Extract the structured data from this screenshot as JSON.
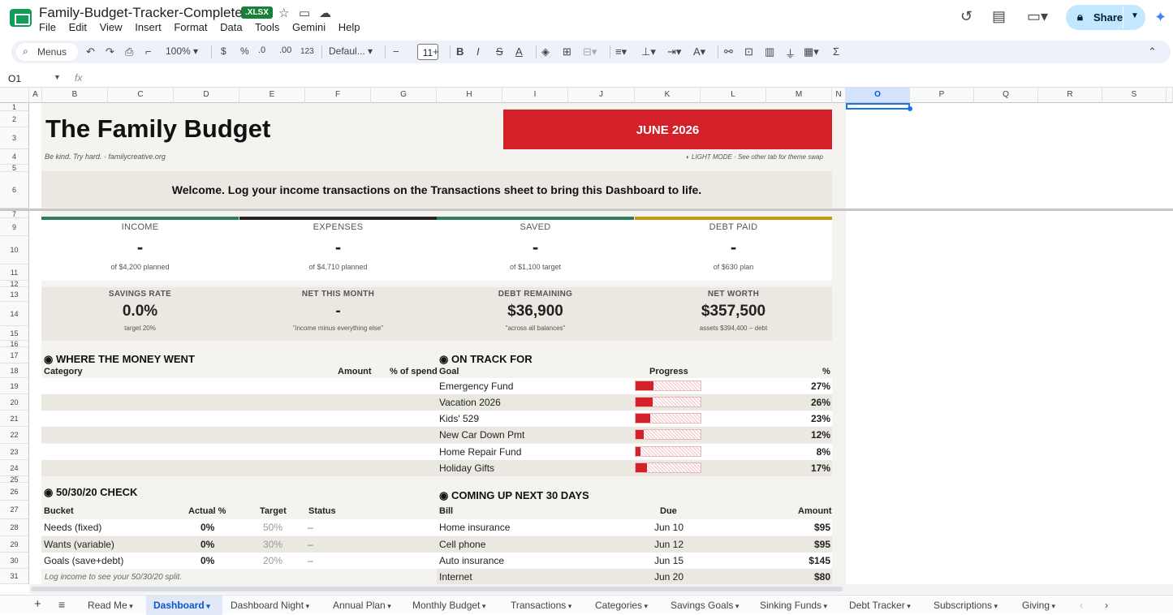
{
  "doc": {
    "title": "Family-Budget-Tracker-Complete-tier",
    "badge": ".XLSX"
  },
  "menus": [
    "File",
    "Edit",
    "View",
    "Insert",
    "Format",
    "Data",
    "Tools",
    "Gemini",
    "Help"
  ],
  "share_label": "Share",
  "toolbar": {
    "search": "Menus",
    "zoom": "100%",
    "currency": "$",
    "percent": "%",
    "dec_less": ".0",
    "dec_more": ".00",
    "num_format": "123",
    "font": "Defaul...",
    "font_size": "11"
  },
  "namebox": "O1",
  "fx": "fx",
  "columns": [
    "A",
    "B",
    "C",
    "D",
    "E",
    "F",
    "G",
    "H",
    "I",
    "J",
    "K",
    "L",
    "M",
    "N",
    "O",
    "P",
    "Q",
    "R",
    "S"
  ],
  "rows": [
    "1",
    "2",
    "3",
    "4",
    "5",
    "6",
    "7",
    "9",
    "10",
    "11",
    "12",
    "13",
    "14",
    "15",
    "16",
    "17",
    "18",
    "19",
    "20",
    "21",
    "22",
    "23",
    "24",
    "25",
    "26",
    "27",
    "28",
    "29",
    "30",
    "31"
  ],
  "header": {
    "title": "The Family Budget",
    "tagline": "Be kind. Try hard.  ·  familycreative.org",
    "month": "JUNE 2026",
    "mode": "◐ LIGHT MODE · See other tab for theme swap"
  },
  "welcome": "Welcome. Log your income transactions on the Transactions sheet to bring this Dashboard to life.",
  "kpis_top": [
    {
      "label": "INCOME",
      "value": "-",
      "sub": "of $4,200 planned",
      "color": "#2e7d5b"
    },
    {
      "label": "EXPENSES",
      "value": "-",
      "sub": "of $4,710 planned",
      "color": "#222222"
    },
    {
      "label": "SAVED",
      "value": "-",
      "sub": "of $1,100 target",
      "color": "#2e7d5b"
    },
    {
      "label": "DEBT PAID",
      "value": "-",
      "sub": "of $630 plan",
      "color": "#c8960c"
    }
  ],
  "kpis_bottom": [
    {
      "label": "SAVINGS RATE",
      "value": "0.0%",
      "sub": "target 20%"
    },
    {
      "label": "NET THIS MONTH",
      "value": "-",
      "sub": "\"income minus everything else\""
    },
    {
      "label": "DEBT REMAINING",
      "value": "$36,900",
      "sub": "\"across all balances\""
    },
    {
      "label": "NET WORTH",
      "value": "$357,500",
      "sub": "assets $394,400 − debt"
    }
  ],
  "money": {
    "title": "◉ WHERE THE MONEY WENT",
    "h_category": "Category",
    "h_amount": "Amount",
    "h_pct": "% of spend"
  },
  "goals": {
    "title": "◉ ON TRACK FOR",
    "h_goal": "Goal",
    "h_progress": "Progress",
    "h_pct": "%",
    "items": [
      {
        "name": "Emergency Fund",
        "pct": "27%",
        "progress": 0.27
      },
      {
        "name": "Vacation 2026",
        "pct": "26%",
        "progress": 0.26
      },
      {
        "name": "Kids' 529",
        "pct": "23%",
        "progress": 0.23
      },
      {
        "name": "New Car Down Pmt",
        "pct": "12%",
        "progress": 0.12
      },
      {
        "name": "Home Repair Fund",
        "pct": "8%",
        "progress": 0.08
      },
      {
        "name": "Holiday Gifts",
        "pct": "17%",
        "progress": 0.17
      }
    ]
  },
  "check": {
    "title": "◉ 50/30/20 CHECK",
    "h_bucket": "Bucket",
    "h_actual": "Actual %",
    "h_target": "Target",
    "h_status": "Status",
    "rows": [
      {
        "bucket": "Needs (fixed)",
        "actual": "0%",
        "target": "50%",
        "status": "–"
      },
      {
        "bucket": "Wants (variable)",
        "actual": "0%",
        "target": "30%",
        "status": "–"
      },
      {
        "bucket": "Goals (save+debt)",
        "actual": "0%",
        "target": "20%",
        "status": "–"
      }
    ],
    "note": "Log income to see your 50/30/20 split."
  },
  "bills": {
    "title": "◉ COMING UP NEXT 30 DAYS",
    "h_bill": "Bill",
    "h_due": "Due",
    "h_amount": "Amount",
    "rows": [
      {
        "bill": "Home insurance",
        "due": "Jun 10",
        "amount": "$95"
      },
      {
        "bill": "Cell phone",
        "due": "Jun 12",
        "amount": "$95"
      },
      {
        "bill": "Auto insurance",
        "due": "Jun 15",
        "amount": "$145"
      },
      {
        "bill": "Internet",
        "due": "Jun 20",
        "amount": "$80"
      }
    ]
  },
  "sheets": [
    "Read Me",
    "Dashboard",
    "Dashboard Night",
    "Annual Plan",
    "Monthly Budget",
    "Transactions",
    "Categories",
    "Savings Goals",
    "Sinking Funds",
    "Debt Tracker",
    "Subscriptions",
    "Giving"
  ],
  "active_sheet": "Dashboard"
}
